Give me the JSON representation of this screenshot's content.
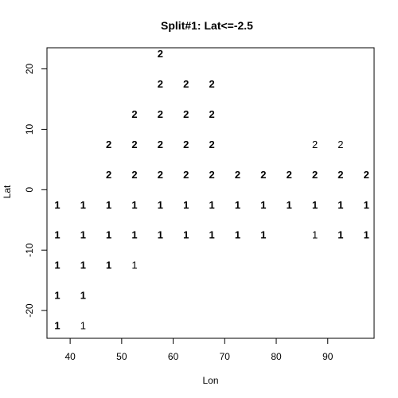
{
  "chart_data": {
    "type": "scatter",
    "title": "Split#1: Lat<=-2.5",
    "xlabel": "Lon",
    "ylabel": "Lat",
    "xlim": [
      35.5,
      99
    ],
    "ylim": [
      -24.6,
      23.5
    ],
    "x_ticks": [
      40,
      50,
      60,
      70,
      80,
      90
    ],
    "y_ticks": [
      -20,
      -10,
      0,
      10,
      20
    ],
    "y_tick_labels": [
      "-20",
      "-10",
      "0",
      "10",
      "20"
    ],
    "grid": false,
    "points": [
      {
        "x": 57.5,
        "y": 22.5,
        "label": "2",
        "bold": true
      },
      {
        "x": 57.5,
        "y": 17.5,
        "label": "2",
        "bold": true
      },
      {
        "x": 62.5,
        "y": 17.5,
        "label": "2",
        "bold": true
      },
      {
        "x": 67.5,
        "y": 17.5,
        "label": "2",
        "bold": true
      },
      {
        "x": 52.5,
        "y": 12.5,
        "label": "2",
        "bold": true
      },
      {
        "x": 57.5,
        "y": 12.5,
        "label": "2",
        "bold": true
      },
      {
        "x": 62.5,
        "y": 12.5,
        "label": "2",
        "bold": true
      },
      {
        "x": 67.5,
        "y": 12.5,
        "label": "2",
        "bold": true
      },
      {
        "x": 47.5,
        "y": 7.5,
        "label": "2",
        "bold": true
      },
      {
        "x": 52.5,
        "y": 7.5,
        "label": "2",
        "bold": true
      },
      {
        "x": 57.5,
        "y": 7.5,
        "label": "2",
        "bold": true
      },
      {
        "x": 62.5,
        "y": 7.5,
        "label": "2",
        "bold": true
      },
      {
        "x": 67.5,
        "y": 7.5,
        "label": "2",
        "bold": true
      },
      {
        "x": 87.5,
        "y": 7.5,
        "label": "2",
        "bold": false
      },
      {
        "x": 92.5,
        "y": 7.5,
        "label": "2",
        "bold": false
      },
      {
        "x": 47.5,
        "y": 2.5,
        "label": "2",
        "bold": true
      },
      {
        "x": 52.5,
        "y": 2.5,
        "label": "2",
        "bold": true
      },
      {
        "x": 57.5,
        "y": 2.5,
        "label": "2",
        "bold": true
      },
      {
        "x": 62.5,
        "y": 2.5,
        "label": "2",
        "bold": true
      },
      {
        "x": 67.5,
        "y": 2.5,
        "label": "2",
        "bold": true
      },
      {
        "x": 72.5,
        "y": 2.5,
        "label": "2",
        "bold": true
      },
      {
        "x": 77.5,
        "y": 2.5,
        "label": "2",
        "bold": true
      },
      {
        "x": 82.5,
        "y": 2.5,
        "label": "2",
        "bold": true
      },
      {
        "x": 87.5,
        "y": 2.5,
        "label": "2",
        "bold": true
      },
      {
        "x": 92.5,
        "y": 2.5,
        "label": "2",
        "bold": true
      },
      {
        "x": 97.5,
        "y": 2.5,
        "label": "2",
        "bold": true
      },
      {
        "x": 37.5,
        "y": -2.5,
        "label": "1",
        "bold": true
      },
      {
        "x": 42.5,
        "y": -2.5,
        "label": "1",
        "bold": true
      },
      {
        "x": 47.5,
        "y": -2.5,
        "label": "1",
        "bold": true
      },
      {
        "x": 52.5,
        "y": -2.5,
        "label": "1",
        "bold": true
      },
      {
        "x": 57.5,
        "y": -2.5,
        "label": "1",
        "bold": true
      },
      {
        "x": 62.5,
        "y": -2.5,
        "label": "1",
        "bold": true
      },
      {
        "x": 67.5,
        "y": -2.5,
        "label": "1",
        "bold": true
      },
      {
        "x": 72.5,
        "y": -2.5,
        "label": "1",
        "bold": true
      },
      {
        "x": 77.5,
        "y": -2.5,
        "label": "1",
        "bold": true
      },
      {
        "x": 82.5,
        "y": -2.5,
        "label": "1",
        "bold": true
      },
      {
        "x": 87.5,
        "y": -2.5,
        "label": "1",
        "bold": true
      },
      {
        "x": 92.5,
        "y": -2.5,
        "label": "1",
        "bold": true
      },
      {
        "x": 97.5,
        "y": -2.5,
        "label": "1",
        "bold": true
      },
      {
        "x": 37.5,
        "y": -7.5,
        "label": "1",
        "bold": true
      },
      {
        "x": 42.5,
        "y": -7.5,
        "label": "1",
        "bold": true
      },
      {
        "x": 47.5,
        "y": -7.5,
        "label": "1",
        "bold": true
      },
      {
        "x": 52.5,
        "y": -7.5,
        "label": "1",
        "bold": true
      },
      {
        "x": 57.5,
        "y": -7.5,
        "label": "1",
        "bold": true
      },
      {
        "x": 62.5,
        "y": -7.5,
        "label": "1",
        "bold": true
      },
      {
        "x": 67.5,
        "y": -7.5,
        "label": "1",
        "bold": true
      },
      {
        "x": 72.5,
        "y": -7.5,
        "label": "1",
        "bold": true
      },
      {
        "x": 77.5,
        "y": -7.5,
        "label": "1",
        "bold": true
      },
      {
        "x": 87.5,
        "y": -7.5,
        "label": "1",
        "bold": false
      },
      {
        "x": 92.5,
        "y": -7.5,
        "label": "1",
        "bold": true
      },
      {
        "x": 97.5,
        "y": -7.5,
        "label": "1",
        "bold": true
      },
      {
        "x": 37.5,
        "y": -12.5,
        "label": "1",
        "bold": true
      },
      {
        "x": 42.5,
        "y": -12.5,
        "label": "1",
        "bold": true
      },
      {
        "x": 47.5,
        "y": -12.5,
        "label": "1",
        "bold": true
      },
      {
        "x": 52.5,
        "y": -12.5,
        "label": "1",
        "bold": false
      },
      {
        "x": 37.5,
        "y": -17.5,
        "label": "1",
        "bold": true
      },
      {
        "x": 42.5,
        "y": -17.5,
        "label": "1",
        "bold": true
      },
      {
        "x": 37.5,
        "y": -22.5,
        "label": "1",
        "bold": true
      },
      {
        "x": 42.5,
        "y": -22.5,
        "label": "1",
        "bold": false
      }
    ]
  }
}
